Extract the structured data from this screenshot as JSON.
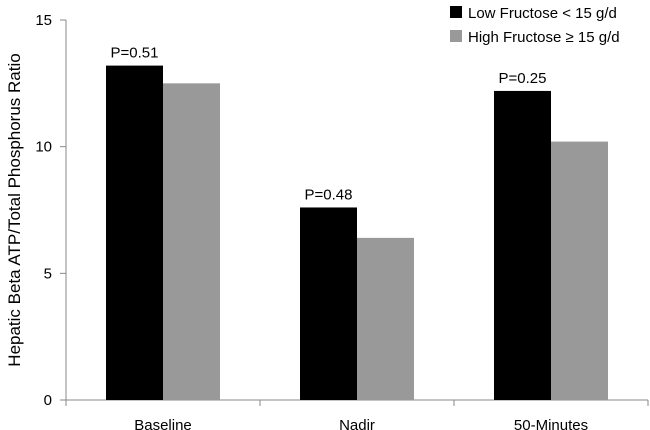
{
  "chart_data": {
    "type": "bar",
    "title": "",
    "xlabel": "",
    "ylabel": "Hepatic Beta ATP/Total Phosphorus Ratio",
    "ylim": [
      0,
      15
    ],
    "yticks": [
      0,
      5,
      10,
      15
    ],
    "grid": false,
    "legend_position": "top-right",
    "categories": [
      "Baseline",
      "Nadir",
      "50-Minutes"
    ],
    "series": [
      {
        "name": "Low Fructose < 15 g/d",
        "color": "#000000",
        "values": [
          13.2,
          7.6,
          12.2
        ]
      },
      {
        "name": "High Fructose ≥ 15 g/d",
        "color": "#999999",
        "values": [
          12.5,
          6.4,
          10.2
        ]
      }
    ],
    "annotations": [
      "P=0.51",
      "P=0.48",
      "P=0.25"
    ]
  }
}
